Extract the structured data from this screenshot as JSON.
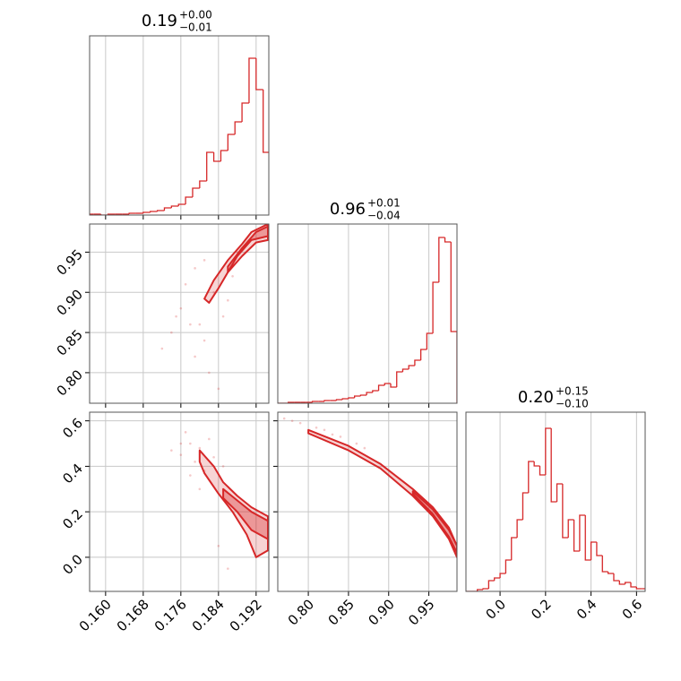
{
  "chart_data": {
    "type": "corner",
    "color": "#d62728",
    "grid": true,
    "params": [
      {
        "title": "0.19",
        "title_plus": "+0.00",
        "title_minus": "−0.01",
        "lim": [
          0.1566,
          0.1947
        ],
        "ticks": [
          {
            "value": 0.16,
            "label": "0.160"
          },
          0.168,
          0.176,
          0.184,
          0.192
        ],
        "hist": {
          "ylim": [
            0,
            200
          ],
          "bins": [
            0.156,
            0.1575,
            0.159,
            0.1605,
            0.162,
            0.1635,
            0.165,
            0.1665,
            0.168,
            0.1695,
            0.171,
            0.1725,
            0.174,
            0.1755,
            0.177,
            0.1785,
            0.18,
            0.1815,
            0.183,
            0.1845,
            0.186,
            0.1875,
            0.189,
            0.1905,
            0.192,
            0.1935,
            0.195
          ],
          "counts": [
            1,
            1,
            0,
            1,
            1,
            1,
            2,
            2,
            3,
            4,
            5,
            8,
            10,
            12,
            20,
            30,
            38,
            70,
            60,
            72,
            90,
            104,
            125,
            175,
            140,
            70
          ]
        }
      },
      {
        "title": "0.96",
        "title_plus": "+0.01",
        "title_minus": "−0.04",
        "lim": [
          0.762,
          0.985
        ],
        "ticks": [
          {
            "value": 0.8,
            "label": "0.80"
          },
          0.85,
          {
            "value": 0.9,
            "label": "0.90"
          },
          0.95
        ],
        "hist": {
          "ylim": [
            0,
            200
          ],
          "bins": [
            0.76,
            0.7675,
            0.775,
            0.7825,
            0.79,
            0.7975,
            0.805,
            0.8125,
            0.82,
            0.8275,
            0.835,
            0.8425,
            0.85,
            0.8575,
            0.865,
            0.8725,
            0.88,
            0.8875,
            0.895,
            0.9025,
            0.91,
            0.9175,
            0.925,
            0.9325,
            0.94,
            0.9475,
            0.955,
            0.9625,
            0.97,
            0.9775,
            0.985
          ],
          "counts": [
            0,
            0,
            1,
            1,
            1,
            1,
            2,
            2,
            3,
            3,
            4,
            5,
            6,
            8,
            9,
            12,
            14,
            20,
            22,
            18,
            35,
            38,
            42,
            48,
            60,
            78,
            135,
            185,
            180,
            80
          ]
        }
      },
      {
        "title": "0.20",
        "title_plus": "+0.15",
        "title_minus": "−0.10",
        "lim": [
          -0.15,
          0.638
        ],
        "ticks": [
          {
            "value": 0,
            "label": "0.0"
          },
          0.2,
          0.4,
          0.6
        ],
        "hist": {
          "ylim": [
            0,
            200
          ],
          "bins": [
            -0.15,
            -0.125,
            -0.1,
            -0.075,
            -0.05,
            -0.025,
            0,
            0.025,
            0.05,
            0.075,
            0.1,
            0.125,
            0.15,
            0.175,
            0.2,
            0.225,
            0.25,
            0.275,
            0.3,
            0.325,
            0.35,
            0.375,
            0.4,
            0.425,
            0.45,
            0.475,
            0.5,
            0.525,
            0.55,
            0.575,
            0.6,
            0.625,
            0.65
          ],
          "counts": [
            0,
            0,
            2,
            3,
            12,
            15,
            20,
            35,
            60,
            80,
            110,
            145,
            140,
            130,
            182,
            100,
            120,
            60,
            80,
            45,
            85,
            35,
            55,
            40,
            22,
            20,
            12,
            8,
            10,
            5,
            3,
            3
          ]
        }
      }
    ],
    "pairs": [
      {
        "points": {
          "x": [
            0.178,
            0.181,
            0.176,
            0.183,
            0.179,
            0.185,
            0.174,
            0.182,
            0.177,
            0.186,
            0.18,
            0.172,
            0.184,
            0.179,
            0.187,
            0.175,
            0.181,
            0.188
          ],
          "y": [
            0.86,
            0.84,
            0.88,
            0.9,
            0.82,
            0.87,
            0.85,
            0.8,
            0.91,
            0.89,
            0.86,
            0.83,
            0.78,
            0.93,
            0.92,
            0.87,
            0.94,
            0.95
          ]
        },
        "contours": [
          {
            "x": [
              0.181,
              0.183,
              0.186,
              0.189,
              0.191,
              0.1945,
              0.1945,
              0.192,
              0.189,
              0.186,
              0.184,
              0.182
            ],
            "y": [
              0.892,
              0.915,
              0.94,
              0.96,
              0.975,
              0.985,
              0.965,
              0.962,
              0.945,
              0.925,
              0.905,
              0.887
            ]
          },
          {
            "x": [
              0.186,
              0.189,
              0.192,
              0.1945,
              0.1945,
              0.191,
              0.188,
              0.186
            ],
            "y": [
              0.932,
              0.955,
              0.975,
              0.982,
              0.97,
              0.965,
              0.945,
              0.925
            ]
          }
        ]
      },
      {
        "points": {
          "x": [
            0.178,
            0.18,
            0.176,
            0.182,
            0.179,
            0.177,
            0.181,
            0.174,
            0.183,
            0.178,
            0.185,
            0.18,
            0.176,
            0.184,
            0.186
          ],
          "y": [
            0.5,
            0.48,
            0.45,
            0.52,
            0.42,
            0.55,
            0.38,
            0.47,
            0.44,
            0.36,
            0.4,
            0.3,
            0.5,
            0.05,
            -0.05
          ]
        },
        "contours": [
          {
            "x": [
              0.18,
              0.183,
              0.185,
              0.188,
              0.191,
              0.1945,
              0.1945,
              0.192,
              0.19,
              0.187,
              0.184,
              0.181,
              0.18
            ],
            "y": [
              0.47,
              0.4,
              0.33,
              0.27,
              0.22,
              0.18,
              0.03,
              0.0,
              0.1,
              0.2,
              0.28,
              0.37,
              0.42
            ]
          },
          {
            "x": [
              0.185,
              0.188,
              0.191,
              0.1945,
              0.1945,
              0.191,
              0.188,
              0.185
            ],
            "y": [
              0.3,
              0.25,
              0.2,
              0.16,
              0.08,
              0.12,
              0.2,
              0.26
            ]
          }
        ]
      },
      {
        "points": {
          "x": [
            0.77,
            0.78,
            0.79,
            0.81,
            0.82,
            0.83,
            0.84,
            0.86,
            0.87
          ],
          "y": [
            0.61,
            0.6,
            0.59,
            0.57,
            0.56,
            0.54,
            0.53,
            0.5,
            0.48
          ]
        },
        "contours": [
          {
            "x": [
              0.8,
              0.85,
              0.89,
              0.93,
              0.955,
              0.975,
              0.985,
              0.985,
              0.975,
              0.955,
              0.93,
              0.89,
              0.85,
              0.8
            ],
            "y": [
              0.56,
              0.49,
              0.41,
              0.3,
              0.22,
              0.13,
              0.05,
              0.0,
              0.08,
              0.18,
              0.27,
              0.39,
              0.47,
              0.545
            ]
          },
          {
            "x": [
              0.93,
              0.955,
              0.975,
              0.985,
              0.985,
              0.975,
              0.955,
              0.93
            ],
            "y": [
              0.29,
              0.21,
              0.12,
              0.05,
              0.02,
              0.09,
              0.19,
              0.28
            ]
          }
        ]
      }
    ]
  }
}
